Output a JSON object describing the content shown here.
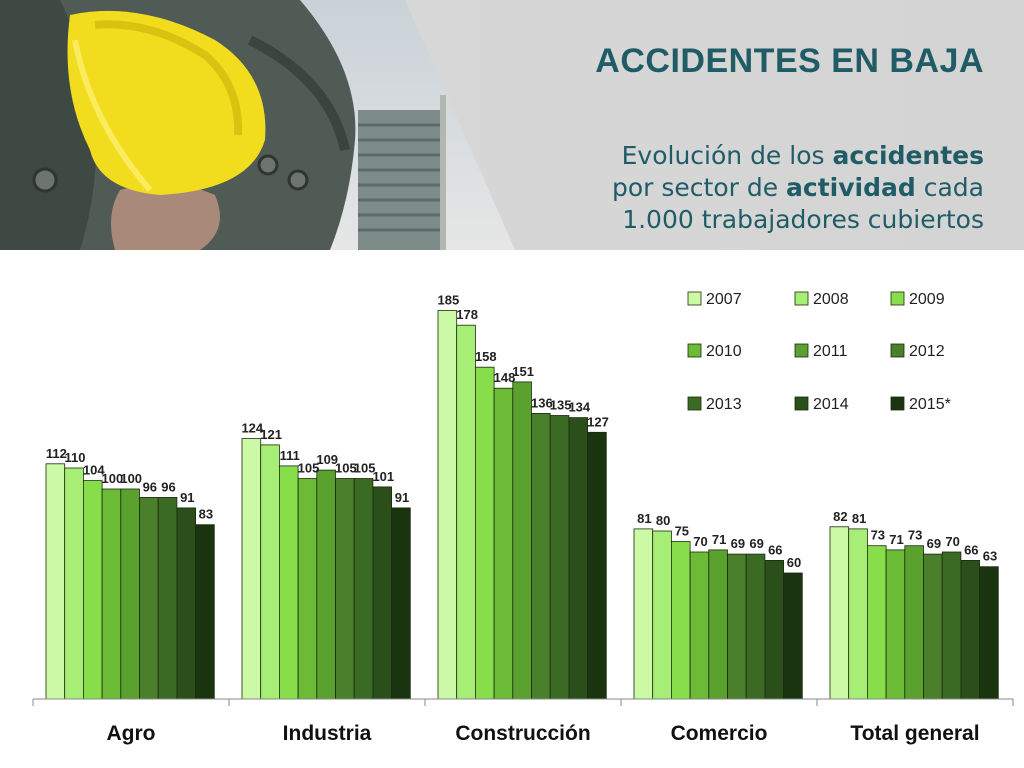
{
  "header": {
    "title": "ACCIDENTES EN BAJA",
    "subtitle": {
      "l1a": "Evolución de los ",
      "l1b": "accidentes",
      "l2a": "por sector de ",
      "l2b": "actividad",
      "l2c": " cada",
      "l3": "1.000 trabajadores cubiertos"
    }
  },
  "colors": {
    "header_text": "#1f5c66",
    "series": [
      "#ccf9a6",
      "#a7ee77",
      "#88dd4a",
      "#6cbb36",
      "#5aa12e",
      "#4a7f2b",
      "#3b6a24",
      "#2a4f1a",
      "#1a3410"
    ]
  },
  "chart_data": {
    "type": "bar",
    "categories": [
      "Agro",
      "Industria",
      "Construcción",
      "Comercio",
      "Total general"
    ],
    "series": [
      {
        "name": "2007",
        "values": [
          112,
          124,
          185,
          81,
          82
        ]
      },
      {
        "name": "2008",
        "values": [
          110,
          121,
          178,
          80,
          81
        ]
      },
      {
        "name": "2009",
        "values": [
          104,
          111,
          158,
          75,
          73
        ]
      },
      {
        "name": "2010",
        "values": [
          100,
          105,
          148,
          70,
          71
        ]
      },
      {
        "name": "2011",
        "values": [
          100,
          109,
          151,
          71,
          73
        ]
      },
      {
        "name": "2012",
        "values": [
          96,
          105,
          136,
          69,
          69
        ]
      },
      {
        "name": "2013",
        "values": [
          96,
          105,
          135,
          69,
          70
        ]
      },
      {
        "name": "2014",
        "values": [
          91,
          101,
          134,
          66,
          66
        ]
      },
      {
        "name": "2015*",
        "values": [
          83,
          91,
          127,
          60,
          63
        ]
      }
    ],
    "ylim": [
      0,
      200
    ],
    "legend_position": "top-right",
    "grid": false
  }
}
